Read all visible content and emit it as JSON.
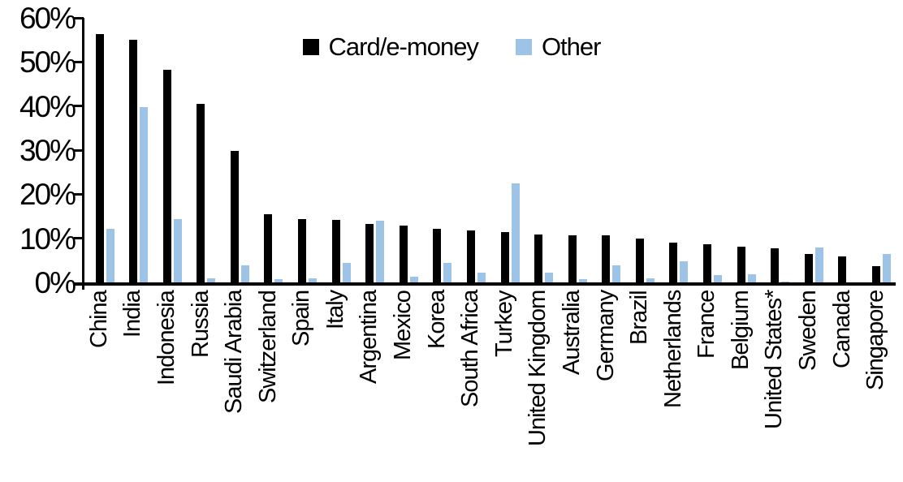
{
  "chart_data": {
    "type": "bar",
    "title": "",
    "xlabel": "",
    "ylabel": "",
    "grid": "off",
    "legend_position": "top-center",
    "ylim": [
      0,
      60
    ],
    "y_ticks": [
      0,
      10,
      20,
      30,
      40,
      50,
      60
    ],
    "y_tick_labels": [
      "0%",
      "10%",
      "20%",
      "30%",
      "40%",
      "50%",
      "60%"
    ],
    "categories": [
      "China",
      "India",
      "Indonesia",
      "Russia",
      "Saudi Arabia",
      "Switzerland",
      "Spain",
      "Italy",
      "Argentina",
      "Mexico",
      "Korea",
      "South Africa",
      "Turkey",
      "United Kingdom",
      "Australia",
      "Germany",
      "Brazil",
      "Netherlands",
      "France",
      "Belgium",
      "United States*",
      "Sweden",
      "Canada",
      "Singapore"
    ],
    "series": [
      {
        "name": "Card/e-money",
        "color": "#000000",
        "values": [
          56.4,
          55.1,
          48.3,
          40.4,
          29.8,
          15.5,
          14.3,
          14.1,
          13.3,
          12.9,
          12.1,
          11.8,
          11.5,
          10.9,
          10.7,
          10.6,
          9.9,
          9.1,
          8.6,
          8.1,
          7.8,
          6.4,
          5.8,
          3.7
        ]
      },
      {
        "name": "Other",
        "color": "#9DC3E6",
        "values": [
          12.2,
          39.8,
          14.4,
          1.0,
          3.8,
          0.8,
          1.0,
          4.5,
          13.9,
          1.2,
          4.4,
          2.3,
          22.5,
          2.3,
          0.8,
          3.8,
          1.0,
          4.7,
          1.6,
          1.9,
          0.2,
          7.9,
          0,
          6.5
        ]
      }
    ],
    "colors": {
      "axis": "#000000"
    }
  }
}
